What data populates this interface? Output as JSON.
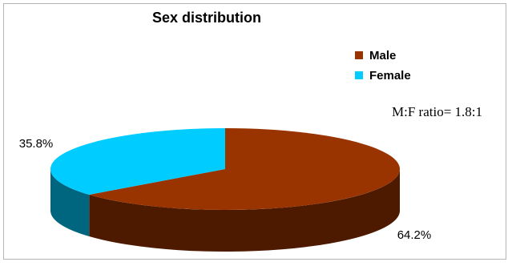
{
  "chart_data": {
    "type": "pie",
    "title": "Sex distribution",
    "categories": [
      "Male",
      "Female"
    ],
    "values": [
      64.2,
      35.8
    ],
    "value_labels": [
      "64.2%",
      "35.8%"
    ],
    "colors": {
      "Male": "#993300",
      "Female": "#00CCFF"
    },
    "legend_position": "top-right",
    "annotation": "M:F ratio= 1.8:1"
  }
}
